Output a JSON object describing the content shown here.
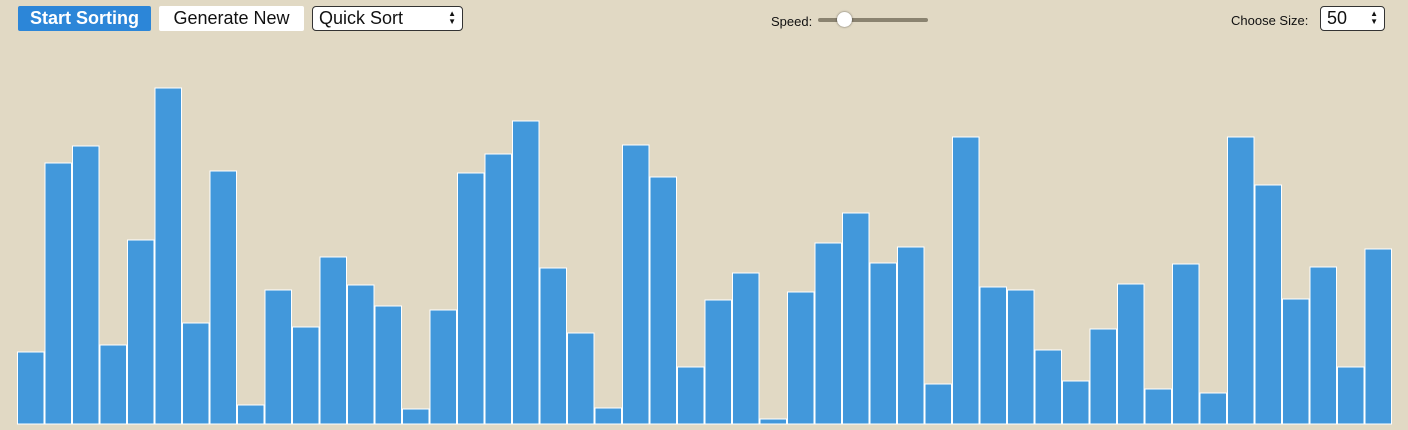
{
  "toolbar": {
    "start_label": "Start Sorting",
    "generate_label": "Generate New",
    "algorithm": {
      "selected": "Quick Sort"
    },
    "speed": {
      "label": "Speed:",
      "value_fraction": 0.2
    },
    "size": {
      "label": "Choose Size:",
      "selected": "50"
    }
  },
  "colors": {
    "background": "#e1d9c4",
    "bar": "#4298db",
    "bar_border": "#ffffff",
    "primary_button": "#2c86d8"
  },
  "chart_data": {
    "type": "bar",
    "values": [
      72,
      261,
      278,
      79,
      184,
      336,
      101,
      253,
      19,
      134,
      97,
      167,
      139,
      118,
      15,
      114,
      251,
      270,
      303,
      156,
      91,
      16,
      279,
      247,
      57,
      124,
      151,
      5,
      132,
      181,
      211,
      161,
      177,
      40,
      287,
      137,
      134,
      74,
      43,
      95,
      140,
      35,
      160,
      31,
      287,
      239,
      125,
      157,
      57,
      175
    ],
    "ylim": [
      0,
      339
    ]
  }
}
